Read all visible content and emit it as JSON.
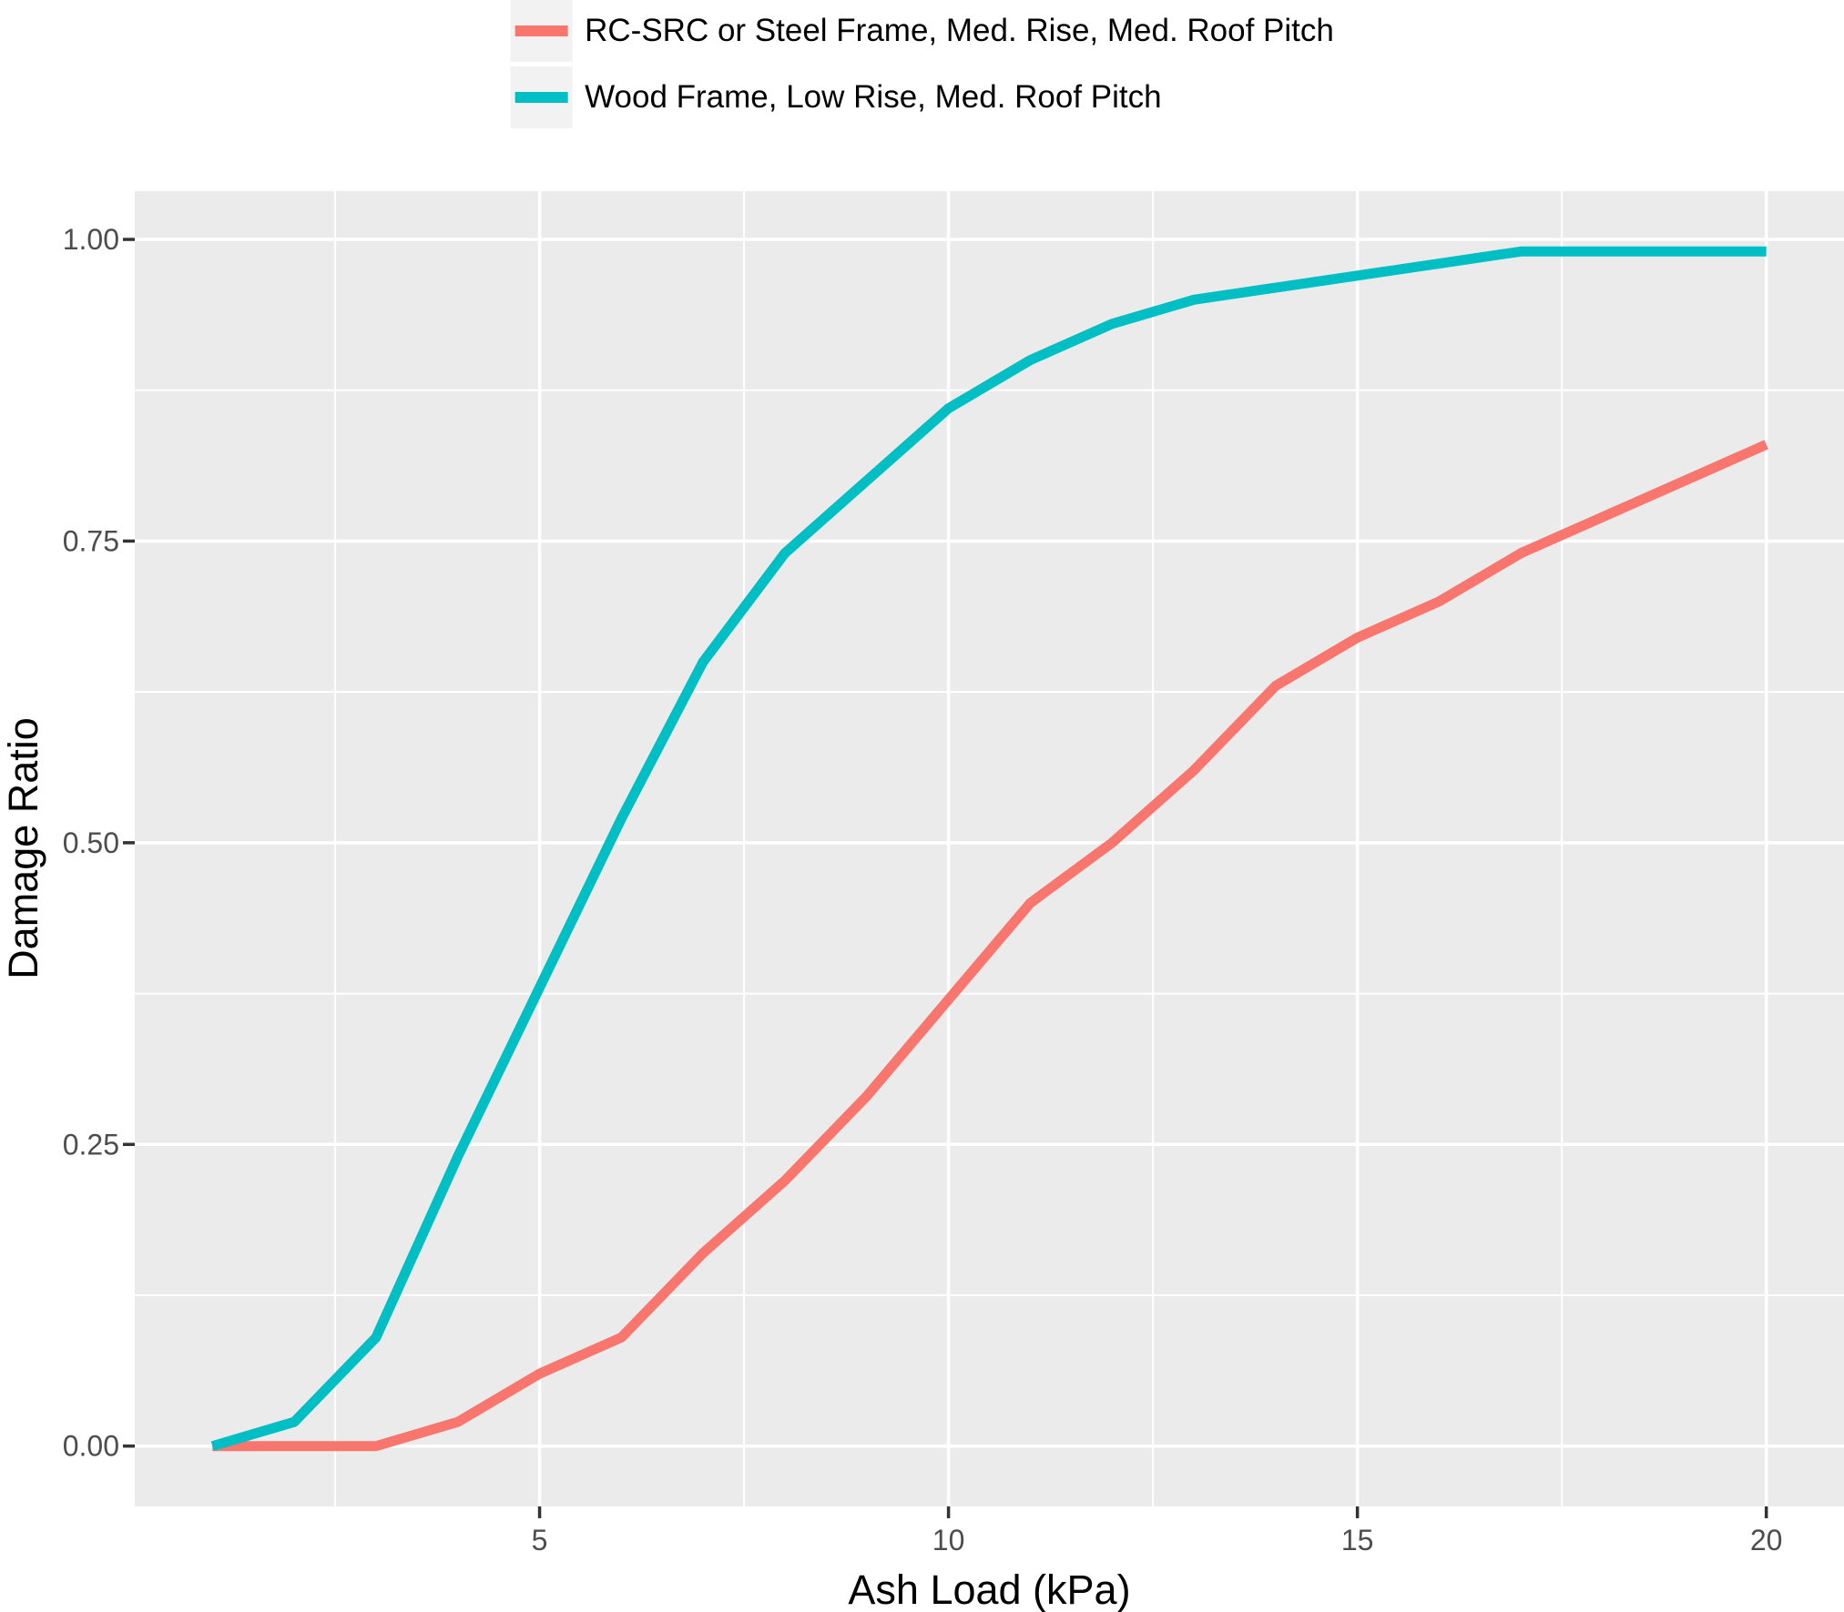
{
  "chart_data": {
    "type": "line",
    "title": "",
    "xlabel": "Ash Load (kPa)",
    "ylabel": "Damage Ratio",
    "x": [
      1,
      2,
      3,
      4,
      5,
      6,
      7,
      8,
      9,
      10,
      11,
      12,
      13,
      14,
      15,
      16,
      17,
      18,
      19,
      20
    ],
    "series": [
      {
        "name": "RC-SRC or Steel Frame, Med. Rise, Med. Roof Pitch",
        "color": "#F8766D",
        "values": [
          0.0,
          0.0,
          0.0,
          0.02,
          0.06,
          0.09,
          0.16,
          0.22,
          0.29,
          0.37,
          0.45,
          0.5,
          0.56,
          0.63,
          0.67,
          0.7,
          0.74,
          0.77,
          0.8,
          0.83
        ]
      },
      {
        "name": "Wood Frame, Low Rise, Med. Roof Pitch",
        "color": "#00BFC4",
        "values": [
          0.0,
          0.02,
          0.09,
          0.24,
          0.38,
          0.52,
          0.65,
          0.74,
          0.8,
          0.86,
          0.9,
          0.93,
          0.95,
          0.96,
          0.97,
          0.98,
          0.99,
          0.99,
          0.99,
          0.99
        ]
      }
    ],
    "x_ticks": [
      5,
      10,
      15,
      20
    ],
    "x_tick_labels": [
      "5",
      "10",
      "15",
      "20"
    ],
    "x_minor_ticks": [
      2.5,
      7.5,
      12.5,
      17.5
    ],
    "y_ticks": [
      0,
      0.25,
      0.5,
      0.75,
      1
    ],
    "y_tick_labels": [
      "0.00",
      "0.25",
      "0.50",
      "0.75",
      "1.00"
    ],
    "y_minor_ticks": [
      0.125,
      0.375,
      0.625,
      0.875
    ],
    "xlim": [
      0.05,
      20.95
    ],
    "ylim": [
      -0.05,
      1.04
    ],
    "grid": true,
    "legend_position": "top-center",
    "colors": {
      "background": "#FFFFFF",
      "panel_bg": "#EBEBEB",
      "grid": "#FFFFFF",
      "tick": "#333333",
      "tick_label": "#4D4D4D",
      "axis_title": "#000000",
      "legend_key_bg": "#F2F2F2"
    }
  }
}
